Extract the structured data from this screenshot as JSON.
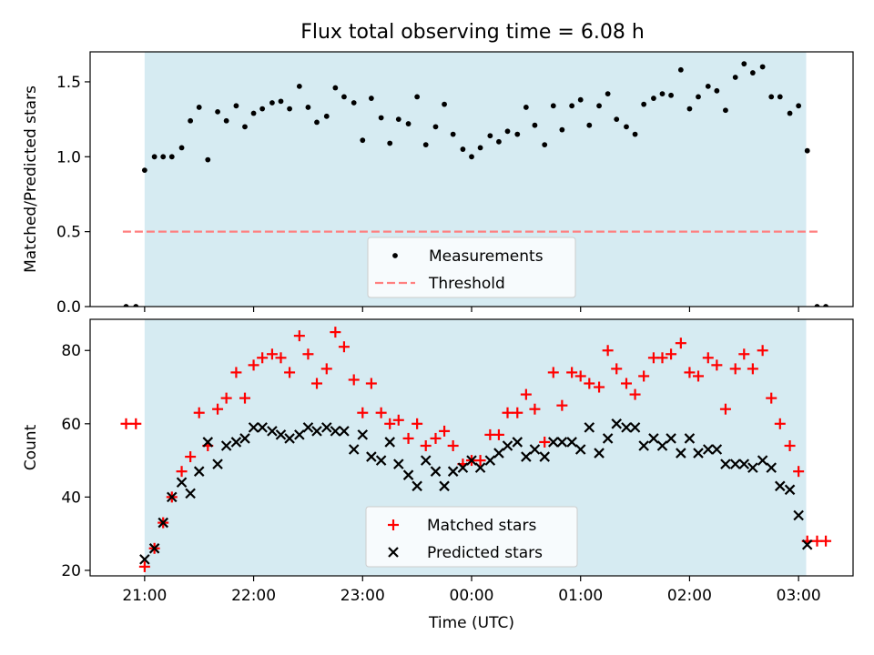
{
  "figure": {
    "title": "Flux total observing time = 6.08 h"
  },
  "colors": {
    "shade": "#add8e6",
    "threshold": "#ff7f7f",
    "matched": "#ff0000",
    "predicted": "#000000",
    "measurement": "#000000"
  },
  "chart_data": [
    {
      "type": "scatter",
      "name": "ratio",
      "ylabel": "Matched/Predicted stars",
      "xlabel": "",
      "x_unit": "hours after 00:00 UTC (night of observation)",
      "xlim": [
        -3.5,
        3.5
      ],
      "ylim": [
        0.0,
        1.7
      ],
      "yticks": [
        0.0,
        0.5,
        1.0,
        1.5
      ],
      "ytick_labels": [
        "0.0",
        "0.5",
        "1.0",
        "1.5"
      ],
      "shaded_span": [
        -3.0,
        3.07
      ],
      "threshold": {
        "y": 0.5,
        "x": [
          -3.2,
          3.2
        ],
        "label": "Threshold"
      },
      "legend": {
        "loc": "lower center",
        "entries": [
          "Measurements",
          "Threshold"
        ]
      },
      "series": [
        {
          "name": "Measurements",
          "x": [
            -3.17,
            -3.08,
            -3.0,
            -2.91,
            -2.83,
            -2.75,
            -2.66,
            -2.58,
            -2.5,
            -2.42,
            -2.33,
            -2.25,
            -2.16,
            -2.08,
            -2.0,
            -1.92,
            -1.83,
            -1.75,
            -1.67,
            -1.58,
            -1.5,
            -1.42,
            -1.33,
            -1.25,
            -1.17,
            -1.08,
            -1.0,
            -0.92,
            -0.83,
            -0.75,
            -0.67,
            -0.58,
            -0.5,
            -0.42,
            -0.33,
            -0.25,
            -0.17,
            -0.08,
            0.0,
            0.08,
            0.17,
            0.25,
            0.33,
            0.42,
            0.5,
            0.58,
            0.67,
            0.75,
            0.83,
            0.92,
            1.0,
            1.08,
            1.17,
            1.25,
            1.33,
            1.42,
            1.5,
            1.58,
            1.67,
            1.75,
            1.83,
            1.92,
            2.0,
            2.08,
            2.17,
            2.25,
            2.33,
            2.42,
            2.5,
            2.58,
            2.67,
            2.75,
            2.83,
            2.92,
            3.0,
            3.08,
            3.17,
            3.25
          ],
          "y": [
            0.0,
            0.0,
            0.91,
            1.0,
            1.0,
            1.0,
            1.06,
            1.24,
            1.33,
            0.98,
            1.3,
            1.24,
            1.34,
            1.2,
            1.29,
            1.32,
            1.36,
            1.37,
            1.32,
            1.47,
            1.33,
            1.23,
            1.27,
            1.46,
            1.4,
            1.36,
            1.11,
            1.39,
            1.26,
            1.09,
            1.25,
            1.22,
            1.4,
            1.08,
            1.2,
            1.35,
            1.15,
            1.05,
            1.0,
            1.06,
            1.14,
            1.1,
            1.17,
            1.15,
            1.33,
            1.21,
            1.08,
            1.34,
            1.18,
            1.34,
            1.38,
            1.21,
            1.34,
            1.42,
            1.25,
            1.2,
            1.15,
            1.35,
            1.39,
            1.42,
            1.41,
            1.58,
            1.32,
            1.4,
            1.47,
            1.44,
            1.31,
            1.53,
            1.62,
            1.56,
            1.6,
            1.4,
            1.4,
            1.29,
            1.34,
            1.04,
            0.0,
            0.0
          ]
        }
      ]
    },
    {
      "type": "scatter",
      "name": "counts",
      "ylabel": "Count",
      "xlabel": "Time (UTC)",
      "x_unit": "hours after 00:00 UTC (night of observation)",
      "xlim": [
        -3.5,
        3.5
      ],
      "ylim": [
        18.5,
        88.5
      ],
      "yticks": [
        20,
        40,
        60,
        80
      ],
      "ytick_labels": [
        "20",
        "40",
        "60",
        "80"
      ],
      "xticks": [
        -3,
        -2,
        -1,
        0,
        1,
        2,
        3
      ],
      "xtick_labels": [
        "21:00",
        "22:00",
        "23:00",
        "00:00",
        "01:00",
        "02:00",
        "03:00"
      ],
      "shaded_span": [
        -3.0,
        3.07
      ],
      "legend": {
        "loc": "lower center",
        "entries": [
          "Matched stars",
          "Predicted stars"
        ]
      },
      "series": [
        {
          "name": "Matched stars",
          "marker": "+",
          "x": [
            -3.17,
            -3.08,
            -3.0,
            -2.91,
            -2.83,
            -2.75,
            -2.66,
            -2.58,
            -2.5,
            -2.42,
            -2.33,
            -2.25,
            -2.16,
            -2.08,
            -2.0,
            -1.92,
            -1.83,
            -1.75,
            -1.67,
            -1.58,
            -1.5,
            -1.42,
            -1.33,
            -1.25,
            -1.17,
            -1.08,
            -1.0,
            -0.92,
            -0.83,
            -0.75,
            -0.67,
            -0.58,
            -0.5,
            -0.42,
            -0.33,
            -0.25,
            -0.17,
            -0.08,
            0.0,
            0.08,
            0.17,
            0.25,
            0.33,
            0.42,
            0.5,
            0.58,
            0.67,
            0.75,
            0.83,
            0.92,
            1.0,
            1.08,
            1.17,
            1.25,
            1.33,
            1.42,
            1.5,
            1.58,
            1.67,
            1.75,
            1.83,
            1.92,
            2.0,
            2.08,
            2.17,
            2.25,
            2.33,
            2.42,
            2.5,
            2.58,
            2.67,
            2.75,
            2.83,
            2.92,
            3.0,
            3.08,
            3.17,
            3.25
          ],
          "y": [
            60,
            60,
            21,
            26,
            33,
            40,
            47,
            51,
            63,
            54,
            64,
            67,
            74,
            67,
            76,
            78,
            79,
            78,
            74,
            84,
            79,
            71,
            75,
            85,
            81,
            72,
            63,
            71,
            63,
            60,
            61,
            56,
            60,
            54,
            56,
            58,
            54,
            49,
            50,
            50,
            57,
            57,
            63,
            63,
            68,
            64,
            55,
            74,
            65,
            74,
            73,
            71,
            70,
            80,
            75,
            71,
            68,
            73,
            78,
            78,
            79,
            82,
            74,
            73,
            78,
            76,
            64,
            75,
            79,
            75,
            80,
            67,
            60,
            54,
            47,
            28,
            28,
            28
          ]
        },
        {
          "name": "Predicted stars",
          "marker": "x",
          "x": [
            -3.0,
            -2.91,
            -2.83,
            -2.75,
            -2.66,
            -2.58,
            -2.5,
            -2.42,
            -2.33,
            -2.25,
            -2.16,
            -2.08,
            -2.0,
            -1.92,
            -1.83,
            -1.75,
            -1.67,
            -1.58,
            -1.5,
            -1.42,
            -1.33,
            -1.25,
            -1.17,
            -1.08,
            -1.0,
            -0.92,
            -0.83,
            -0.75,
            -0.67,
            -0.58,
            -0.5,
            -0.42,
            -0.33,
            -0.25,
            -0.17,
            -0.08,
            0.0,
            0.08,
            0.17,
            0.25,
            0.33,
            0.42,
            0.5,
            0.58,
            0.67,
            0.75,
            0.83,
            0.92,
            1.0,
            1.08,
            1.17,
            1.25,
            1.33,
            1.42,
            1.5,
            1.58,
            1.67,
            1.75,
            1.83,
            1.92,
            2.0,
            2.08,
            2.17,
            2.25,
            2.33,
            2.42,
            2.5,
            2.58,
            2.67,
            2.75,
            2.83,
            2.92,
            3.0,
            3.08
          ],
          "y": [
            23,
            26,
            33,
            40,
            44,
            41,
            47,
            55,
            49,
            54,
            55,
            56,
            59,
            59,
            58,
            57,
            56,
            57,
            59,
            58,
            59,
            58,
            58,
            53,
            57,
            51,
            50,
            55,
            49,
            46,
            43,
            50,
            47,
            43,
            47,
            48,
            50,
            48,
            50,
            52,
            54,
            55,
            51,
            53,
            51,
            55,
            55,
            55,
            53,
            59,
            52,
            56,
            60,
            59,
            59,
            54,
            56,
            54,
            56,
            52,
            56,
            52,
            53,
            53,
            49,
            49,
            49,
            48,
            50,
            48,
            43,
            42,
            35,
            27
          ]
        }
      ]
    }
  ]
}
